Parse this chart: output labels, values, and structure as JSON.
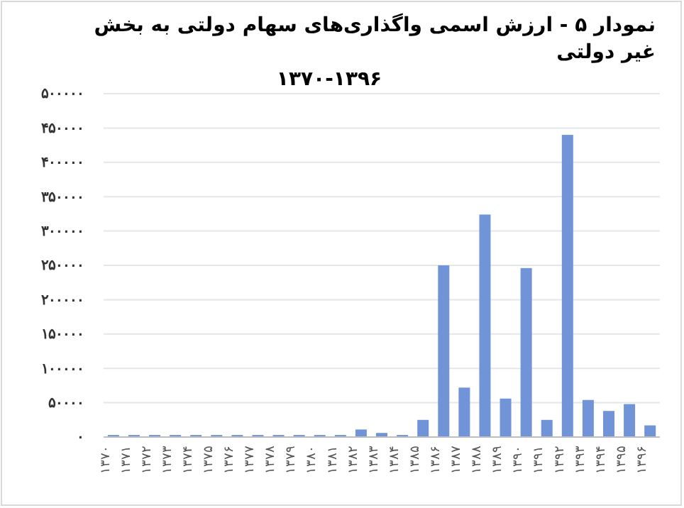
{
  "chart_data": {
    "type": "bar",
    "title": "نمودار ۵ -  ارزش اسمی واگذاری‌های سهام دولتی به بخش غیر دولتی\n۱۳۷۰-۱۳۹۶",
    "categories": [
      "۱۳۷۰",
      "۱۳۷۱",
      "۱۳۷۲",
      "۱۳۷۳",
      "۱۳۷۴",
      "۱۳۷۵",
      "۱۳۷۶",
      "۱۳۷۷",
      "۱۳۷۸",
      "۱۳۷۹",
      "۱۳۸۰",
      "۱۳۸۱",
      "۱۳۸۲",
      "۱۳۸۳",
      "۱۳۸۴",
      "۱۳۸۵",
      "۱۳۸۶",
      "۱۳۸۷",
      "۱۳۸۸",
      "۱۳۸۹",
      "۱۳۹۰",
      "۱۳۹۱",
      "۱۳۹۲",
      "۱۳۹۳",
      "۱۳۹۴",
      "۱۳۹۵",
      "۱۳۹۶"
    ],
    "values": [
      3000,
      3000,
      3000,
      3000,
      3000,
      3000,
      3000,
      3000,
      3000,
      3000,
      3000,
      3000,
      11000,
      6000,
      3000,
      25000,
      250000,
      72000,
      324000,
      56000,
      246000,
      25000,
      440000,
      54000,
      38000,
      48000,
      17000
    ],
    "color": "#7194d8",
    "ylim": [
      0,
      500000
    ],
    "yticks": [
      {
        "value": 0,
        "label": "۰"
      },
      {
        "value": 50000,
        "label": "۵۰۰۰۰"
      },
      {
        "value": 100000,
        "label": "۱۰۰۰۰۰"
      },
      {
        "value": 150000,
        "label": "۱۵۰۰۰۰"
      },
      {
        "value": 200000,
        "label": "۲۰۰۰۰۰"
      },
      {
        "value": 250000,
        "label": "۲۵۰۰۰۰"
      },
      {
        "value": 300000,
        "label": "۳۰۰۰۰۰"
      },
      {
        "value": 350000,
        "label": "۳۵۰۰۰۰"
      },
      {
        "value": 400000,
        "label": "۴۰۰۰۰۰"
      },
      {
        "value": 450000,
        "label": "۴۵۰۰۰۰"
      },
      {
        "value": 500000,
        "label": "۵۰۰۰۰۰"
      }
    ],
    "grid": "y"
  }
}
